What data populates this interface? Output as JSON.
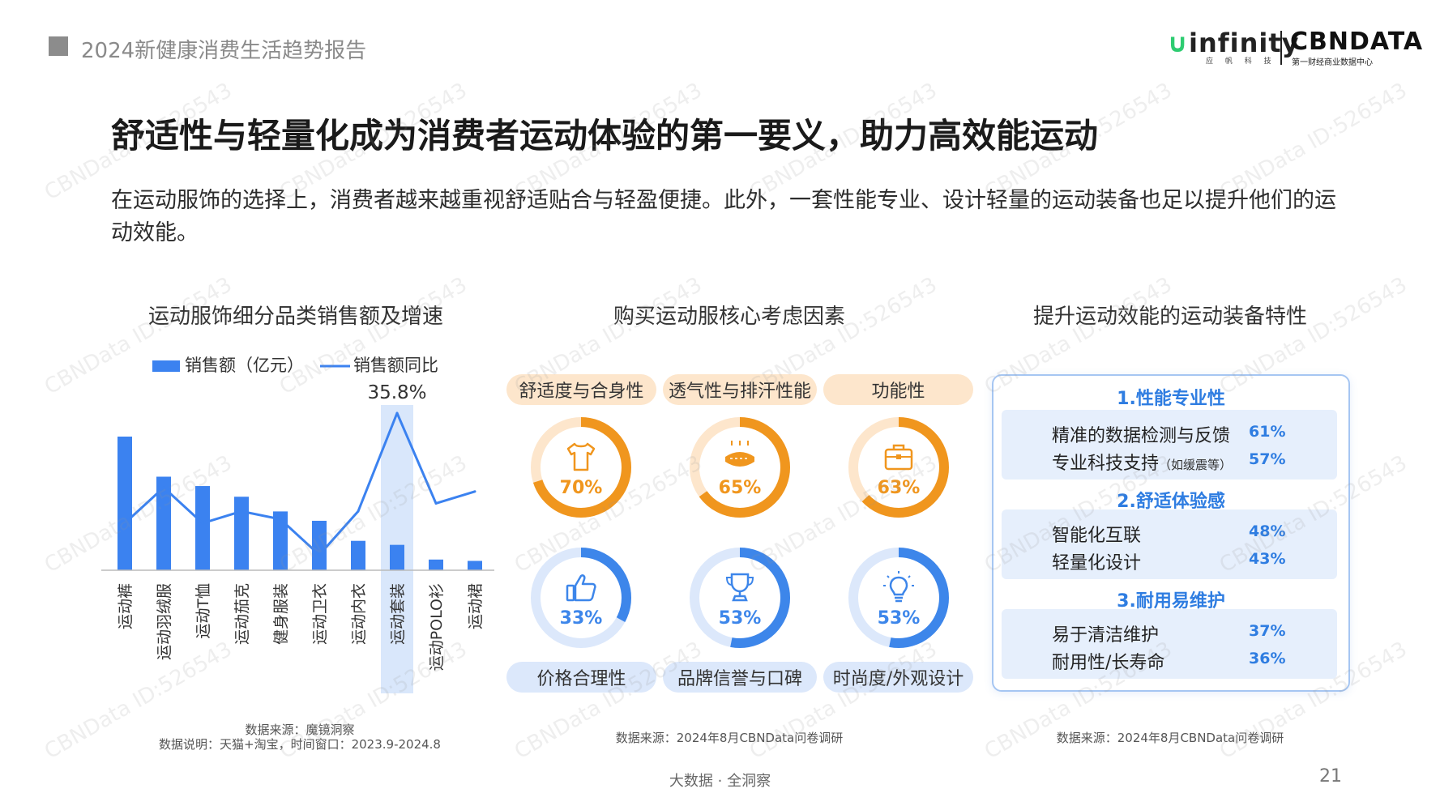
{
  "header": {
    "title": "2024新健康消费生活趋势报告"
  },
  "logo": {
    "brand_a": "infinity",
    "brand_a_sub": "应 帆 科 技",
    "brand_b": "CBNDATA",
    "brand_b_sub": "第一财经商业数据中心"
  },
  "main": {
    "title": "舒适性与轻量化成为消费者运动体验的第一要义，助力高效能运动",
    "description": "在运动服饰的选择上，消费者越来越重视舒适贴合与轻盈便捷。此外，一套性能专业、设计轻量的运动装备也足以提升他们的运动效能。"
  },
  "chart_data": {
    "type": "bar",
    "title": "运动服饰细分品类销售额及增速",
    "categories": [
      "运动裤",
      "运动羽绒服",
      "运动T恤",
      "运动茄克",
      "健身服装",
      "运动卫衣",
      "运动内衣",
      "运动套装",
      "运动POLO衫",
      "运动裙"
    ],
    "series": [
      {
        "name": "销售额（亿元）",
        "type": "bar",
        "values": [
          100,
          70,
          63,
          55,
          44,
          37,
          22,
          19,
          8,
          7
        ]
      },
      {
        "name": "销售额同比",
        "type": "line",
        "values": [
          8,
          17,
          8,
          11,
          9,
          0,
          11,
          35.8,
          13,
          16
        ]
      }
    ],
    "highlight_category": "运动套装",
    "annotation": "35.8%",
    "legend": "top",
    "colors": {
      "bar": "#3b82f0",
      "line": "#3b82f0",
      "highlight": "#d9e7fb"
    },
    "source": "数据来源：魔镜洞察",
    "note": "数据说明：天猫+淘宝，时间窗口：2023.9-2024.8"
  },
  "middle": {
    "title": "购买运动服核心考虑因素",
    "top_factors": [
      {
        "label": "舒适度与合身性",
        "value": 70,
        "display": "70%",
        "icon": "tshirt-icon"
      },
      {
        "label": "透气性与排汗性能",
        "value": 65,
        "display": "65%",
        "icon": "breathable-fabric-icon"
      },
      {
        "label": "功能性",
        "value": 63,
        "display": "63%",
        "icon": "briefcase-icon"
      }
    ],
    "bottom_factors": [
      {
        "label": "价格合理性",
        "value": 33,
        "display": "33%",
        "icon": "thumbs-up-icon"
      },
      {
        "label": "品牌信誉与口碑",
        "value": 53,
        "display": "53%",
        "icon": "trophy-icon"
      },
      {
        "label": "时尚度/外观设计",
        "value": 53,
        "display": "53%",
        "icon": "lightbulb-icon"
      }
    ],
    "colors": {
      "orange": "#f0961e",
      "orange_light": "#fde6cc",
      "blue": "#3d86ea",
      "blue_light": "#dce8fb"
    },
    "source": "数据来源：2024年8月CBNData问卷调研"
  },
  "right": {
    "title": "提升运动效能的运动装备特性",
    "groups": [
      {
        "title": "1.性能专业性",
        "items": [
          {
            "label": "精准的数据检测与反馈",
            "note": "",
            "value": "61%"
          },
          {
            "label": "专业科技支持",
            "note": "（如缓震等）",
            "value": "57%"
          }
        ]
      },
      {
        "title": "2.舒适体验感",
        "items": [
          {
            "label": "智能化互联",
            "note": "",
            "value": "48%"
          },
          {
            "label": "轻量化设计",
            "note": "",
            "value": "43%"
          }
        ]
      },
      {
        "title": "3.耐用易维护",
        "items": [
          {
            "label": "易于清洁维护",
            "note": "",
            "value": "37%"
          },
          {
            "label": "耐用性/长寿命",
            "note": "",
            "value": "36%"
          }
        ]
      }
    ],
    "source": "数据来源：2024年8月CBNData问卷调研"
  },
  "footer": {
    "center": "大数据 · 全洞察",
    "page": "21"
  },
  "watermark": "CBNData ID:526543"
}
